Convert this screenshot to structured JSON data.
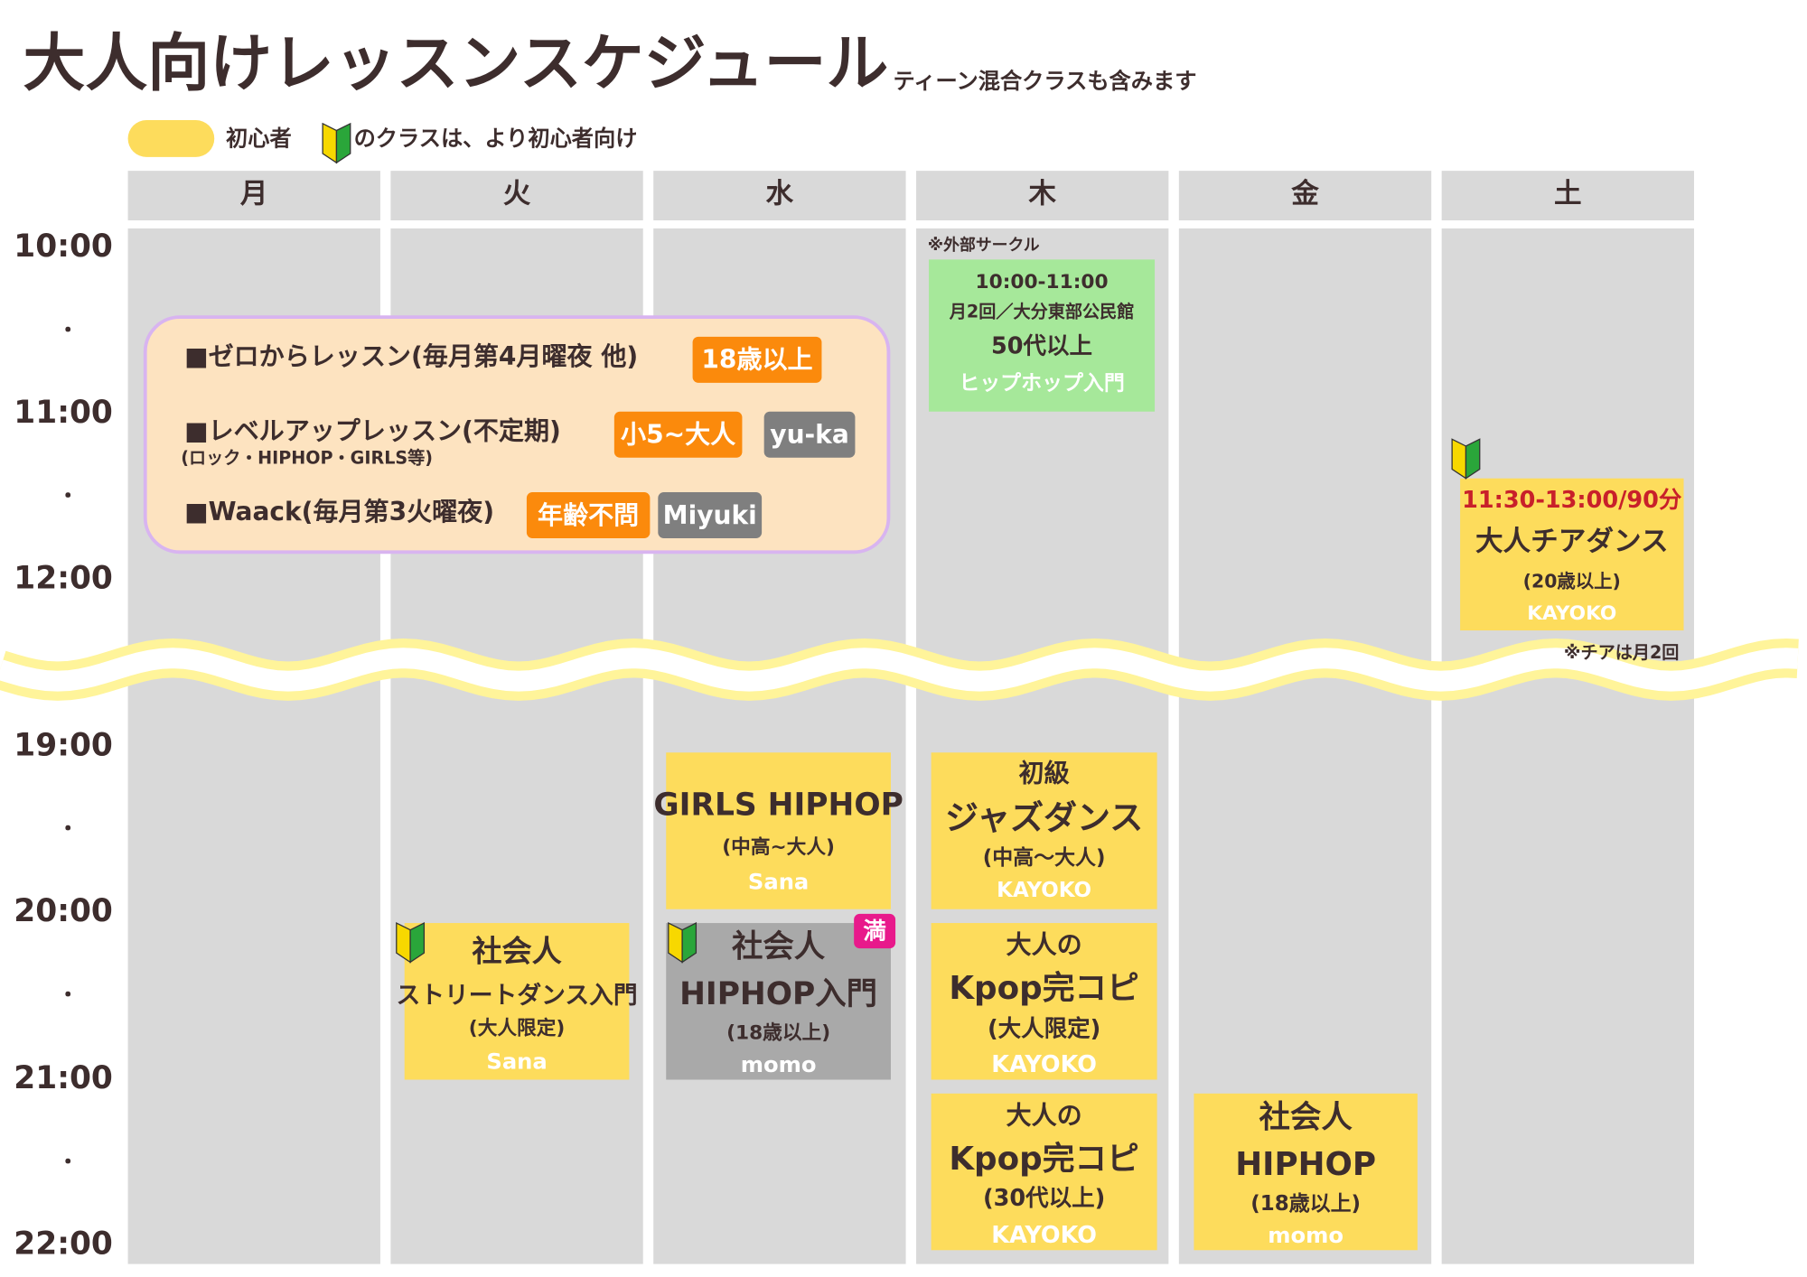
{
  "header": {
    "title": "大人向けレッスンスケジュール",
    "subtitle": "ティーン混合クラスも含みます"
  },
  "legend": {
    "label": "初心者",
    "note": "のクラスは、より初心者向け"
  },
  "days": [
    "月",
    "火",
    "水",
    "木",
    "金",
    "土"
  ],
  "times": [
    "10:00",
    "・",
    "11:00",
    "・",
    "12:00",
    "19:00",
    "・",
    "20:00",
    "・",
    "21:00",
    "・",
    "22:00"
  ],
  "info_box": [
    {
      "text": "■ゼロからレッスン(毎月第4月曜夜 他)",
      "tags": [
        "18歳以上"
      ]
    },
    {
      "text": "■レベルアップレッスン(不定期)",
      "sub": "(ロック・HIPHOP・GIRLS等)",
      "tags": [
        "小5~大人",
        "yu-ka"
      ]
    },
    {
      "text": "■Waack(毎月第3火曜夜)",
      "tags": [
        "年齢不問",
        "Miyuki"
      ]
    }
  ],
  "classes": [
    {
      "note": "※外部サークル",
      "lines": [
        "10:00-11:00",
        "月2回／大分東部公民館",
        "50代以上",
        "ヒップホップ入門"
      ]
    },
    {
      "lines": [
        "11:30-13:00/90分",
        "大人チアダンス",
        "(20歳以上)",
        "KAYOKO"
      ],
      "note": "※チアは月2回"
    },
    {
      "lines": [
        "GIRLS HIPHOP",
        "(中高~大人)",
        "Sana"
      ]
    },
    {
      "lines": [
        "社会人",
        "HIPHOP入門",
        "(18歳以上)",
        "momo"
      ],
      "badge": "満"
    },
    {
      "lines": [
        "社会人",
        "ストリートダンス入門",
        "(大人限定)",
        "Sana"
      ]
    },
    {
      "lines": [
        "初級",
        "ジャズダンス",
        "(中高〜大人)",
        "KAYOKO"
      ]
    },
    {
      "lines": [
        "大人の",
        "Kpop完コピ",
        "(大人限定)",
        "KAYOKO"
      ]
    },
    {
      "lines": [
        "大人の",
        "Kpop完コピ",
        "(30代以上)",
        "KAYOKO"
      ]
    },
    {
      "lines": [
        "社会人",
        "HIPHOP",
        "(18歳以上)",
        "momo"
      ]
    }
  ]
}
